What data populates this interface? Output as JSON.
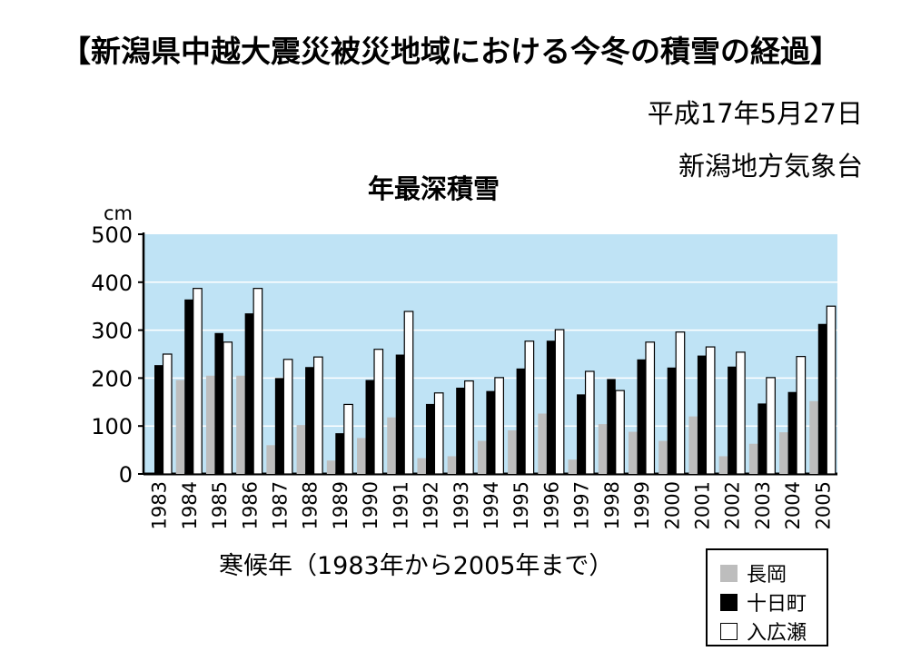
{
  "header": {
    "title": "【新潟県中越大震災被災地域における今冬の積雪の経過】",
    "date": "平成17年5月27日",
    "org": "新潟地方気象台"
  },
  "chart_data": {
    "type": "bar",
    "title": "年最深積雪",
    "unit_label": "cm",
    "xlabel": "寒候年（1983年から2005年まで）",
    "ylabel": "",
    "ylim": [
      0,
      500
    ],
    "yticks": [
      "0",
      "100",
      "200",
      "300",
      "400",
      "500"
    ],
    "grid": true,
    "background": "#bfe3f5",
    "legend_position": "bottom-right",
    "categories": [
      "1983",
      "1984",
      "1985",
      "1986",
      "1987",
      "1988",
      "1989",
      "1990",
      "1991",
      "1992",
      "1993",
      "1994",
      "1995",
      "1996",
      "1997",
      "1998",
      "1999",
      "2000",
      "2001",
      "2002",
      "2003",
      "2004",
      "2005"
    ],
    "series": [
      {
        "name": "長岡",
        "color": "#bdbdbd",
        "values": [
          0,
          196,
          205,
          205,
          60,
          102,
          28,
          75,
          118,
          33,
          37,
          69,
          91,
          126,
          30,
          104,
          88,
          69,
          120,
          37,
          63,
          87,
          152
        ]
      },
      {
        "name": "十日町",
        "color": "#000000",
        "values": [
          227,
          364,
          294,
          335,
          200,
          223,
          85,
          196,
          249,
          146,
          180,
          173,
          220,
          278,
          166,
          198,
          239,
          222,
          247,
          224,
          147,
          171,
          313
        ]
      },
      {
        "name": "入広瀬",
        "color": "#ffffff",
        "values": [
          250,
          387,
          275,
          387,
          239,
          244,
          145,
          260,
          339,
          169,
          194,
          201,
          277,
          301,
          214,
          174,
          275,
          296,
          265,
          254,
          201,
          245,
          350
        ]
      }
    ]
  }
}
